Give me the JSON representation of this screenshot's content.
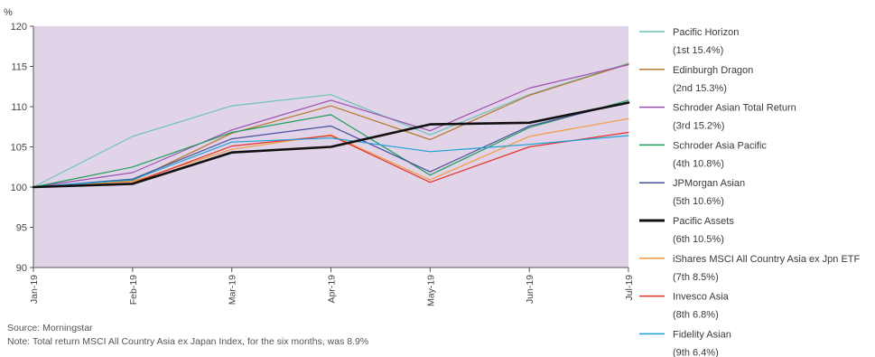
{
  "chart_data": {
    "type": "line",
    "ylabel": "%",
    "ylim": [
      90,
      120
    ],
    "yticks": [
      90,
      95,
      100,
      105,
      110,
      115,
      120
    ],
    "categories": [
      "Jan-19",
      "Feb-19",
      "Mar-19",
      "Apr-19",
      "May-19",
      "Jun-19",
      "Jul-19"
    ],
    "plot_background": "#e2d4e8",
    "grid": false,
    "legend_position": "right",
    "series": [
      {
        "name": "Pacific Horizon",
        "rank": "(1st 15.4%)",
        "color": "#6cc3b5",
        "width": 1.2,
        "values": [
          100,
          106.3,
          110.1,
          111.5,
          106.5,
          111.5,
          115.4
        ]
      },
      {
        "name": "Edinburgh Dragon",
        "rank": "(2nd 15.3%)",
        "color": "#b8762a",
        "width": 1.2,
        "values": [
          100,
          100.8,
          106.7,
          110.1,
          105.9,
          111.4,
          115.3
        ]
      },
      {
        "name": "Schroder Asian Total Return",
        "rank": "(3rd 15.2%)",
        "color": "#9a4fb3",
        "width": 1.2,
        "values": [
          100,
          101.8,
          107.1,
          110.8,
          107.0,
          112.3,
          115.2
        ]
      },
      {
        "name": "Schroder Asia Pacific",
        "rank": "(4th 10.8%)",
        "color": "#1c9e5a",
        "width": 1.2,
        "values": [
          100,
          102.5,
          106.8,
          109.0,
          101.5,
          107.4,
          110.8
        ]
      },
      {
        "name": "JPMorgan Asian",
        "rank": "(5th 10.6%)",
        "color": "#4a4f9c",
        "width": 1.2,
        "values": [
          100,
          101.0,
          106.0,
          107.6,
          101.9,
          107.6,
          110.6
        ]
      },
      {
        "name": "Pacific Assets",
        "rank": "(6th 10.5%)",
        "color": "#111111",
        "width": 2.6,
        "values": [
          100,
          100.4,
          104.3,
          105.0,
          107.8,
          108.0,
          110.5
        ]
      },
      {
        "name": "iShares MSCI All Country Asia ex Jpn ETF",
        "rank": "(7th 8.5%)",
        "color": "#f39a3c",
        "width": 1.2,
        "values": [
          100,
          100.7,
          104.7,
          106.5,
          100.9,
          106.3,
          108.5
        ]
      },
      {
        "name": "Invesco Asia",
        "rank": "(8th 6.8%)",
        "color": "#e2322a",
        "width": 1.2,
        "values": [
          100,
          100.5,
          105.1,
          106.4,
          100.6,
          105.0,
          106.8
        ]
      },
      {
        "name": "Fidelity Asian",
        "rank": "(9th 6.4%)",
        "color": "#1a9fd9",
        "width": 1.2,
        "values": [
          100,
          100.9,
          105.6,
          106.1,
          104.4,
          105.3,
          106.4
        ]
      }
    ]
  },
  "footer": {
    "source": "Source: Morningstar",
    "note": "Note: Total return MSCI All Country Asia ex Japan Index, for the six months, was 8.9%"
  }
}
